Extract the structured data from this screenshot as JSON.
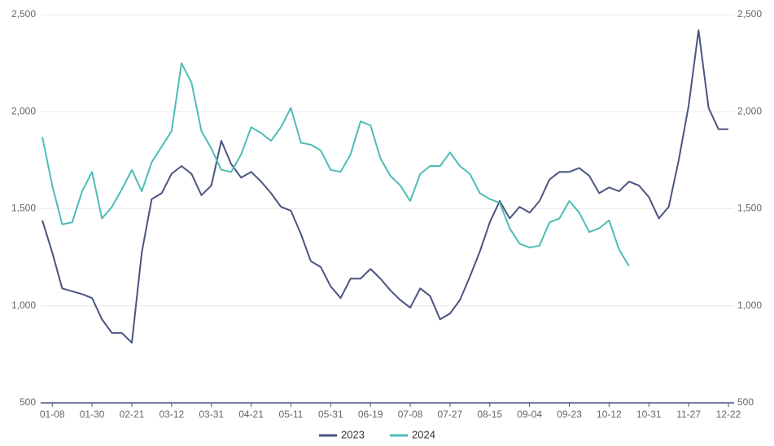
{
  "chart_data": {
    "type": "line",
    "categories": [
      null,
      "01-08",
      null,
      null,
      null,
      "01-30",
      null,
      null,
      null,
      "02-21",
      null,
      null,
      null,
      "03-12",
      null,
      null,
      null,
      "03-31",
      null,
      null,
      null,
      "04-21",
      null,
      null,
      null,
      "05-11",
      null,
      null,
      null,
      "05-31",
      null,
      null,
      null,
      "06-19",
      null,
      null,
      null,
      "07-08",
      null,
      null,
      null,
      "07-27",
      null,
      null,
      null,
      "08-15",
      null,
      null,
      null,
      "09-04",
      null,
      null,
      null,
      "09-23",
      null,
      null,
      null,
      "10-12",
      null,
      null,
      null,
      "10-31",
      null,
      null,
      null,
      "11-27",
      null,
      null,
      null,
      "12-22"
    ],
    "series": [
      {
        "name": "2023",
        "color": "#4a5580",
        "values": [
          1440,
          1275,
          1090,
          1075,
          1060,
          1040,
          930,
          860,
          860,
          810,
          1275,
          1550,
          1580,
          1680,
          1720,
          1680,
          1570,
          1620,
          1850,
          1730,
          1660,
          1690,
          1640,
          1580,
          1510,
          1490,
          1370,
          1230,
          1200,
          1100,
          1040,
          1140,
          1140,
          1190,
          1140,
          1080,
          1030,
          990,
          1090,
          1050,
          930,
          960,
          1030,
          1150,
          1280,
          1430,
          1540,
          1450,
          1510,
          1480,
          1540,
          1650,
          1690,
          1690,
          1710,
          1670,
          1580,
          1610,
          1590,
          1640,
          1620,
          1560,
          1450,
          1510,
          1750,
          2030,
          2420,
          2020,
          1910,
          1910
        ]
      },
      {
        "name": "2024",
        "color": "#4dbdb6",
        "values": [
          1870,
          1620,
          1420,
          1430,
          1590,
          1690,
          1450,
          1510,
          1600,
          1700,
          1590,
          1740,
          1820,
          1900,
          2250,
          2150,
          1900,
          1810,
          1700,
          1690,
          1780,
          1920,
          1890,
          1850,
          1920,
          2020,
          1840,
          1830,
          1800,
          1700,
          1690,
          1780,
          1950,
          1930,
          1760,
          1670,
          1620,
          1540,
          1680,
          1720,
          1720,
          1790,
          1720,
          1680,
          1580,
          1550,
          1530,
          1400,
          1320,
          1300,
          1310,
          1430,
          1450,
          1540,
          1480,
          1380,
          1400,
          1440,
          1290,
          1205,
          null,
          null,
          null,
          null,
          null,
          null,
          null,
          null,
          null,
          null
        ]
      }
    ],
    "ylim": [
      500,
      2500
    ],
    "yticks": [
      500,
      {
        "value": 1000,
        "label": "1,000"
      },
      {
        "value": 1500,
        "label": "1,500"
      },
      {
        "value": 2000,
        "label": "2,000"
      },
      {
        "value": 2500,
        "label": "2,500"
      }
    ],
    "y2lim": [
      500,
      2500
    ],
    "y2ticks": [
      500,
      {
        "value": 1000,
        "label": "1,000"
      },
      {
        "value": 1500,
        "label": "1,500"
      },
      {
        "value": 2000,
        "label": "2,000"
      },
      {
        "value": 2500,
        "label": "2,500"
      }
    ],
    "grid": true,
    "legend": "bottom"
  }
}
